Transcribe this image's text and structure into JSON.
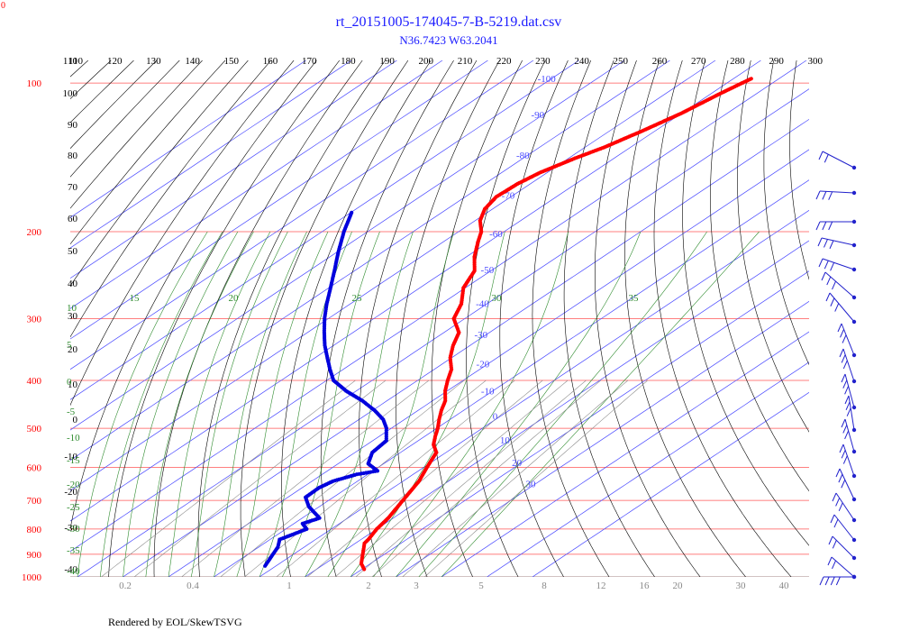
{
  "title": "rt_20151005-174045-7-B-5219.dat.csv",
  "subtitle": "N36.7423 W63.2041",
  "footer": "Rendered by EOL/SkewTSVG",
  "corner_label": "0",
  "colors": {
    "temperature": "#ff0000",
    "dewpoint": "#0000dd",
    "isobar": "#ff5555",
    "isotherm": "#4a4aff",
    "dry_adiabat": "#000000",
    "moist_adiabat": "#2e8b2e",
    "mixing_ratio": "#888888",
    "wind": "#2222cc"
  },
  "chart_data": {
    "type": "scatter",
    "title": "rt_20151005-174045-7-B-5219.dat.csv",
    "subtitle": "N36.7423 W63.2041",
    "pressure_ticks": [
      "100",
      "200",
      "300",
      "400",
      "500",
      "600",
      "700",
      "800",
      "900",
      "1000"
    ],
    "pressure_values": [
      100,
      200,
      300,
      400,
      500,
      600,
      700,
      800,
      900,
      1000
    ],
    "top_ticks": [
      "110",
      "120",
      "130",
      "140",
      "150",
      "160",
      "170",
      "180",
      "190",
      "200",
      "210",
      "220",
      "230",
      "240",
      "250",
      "260",
      "270",
      "280",
      "290",
      "300"
    ],
    "left_ticks": [
      "110",
      "100",
      "90",
      "80",
      "70",
      "60",
      "50",
      "40",
      "30",
      "20",
      "10",
      "0",
      "-10",
      "-20",
      "-30",
      "-40"
    ],
    "isotherm_labels": [
      "-110",
      "-100",
      "-90",
      "-80",
      "-70",
      "-60",
      "-50",
      "-40",
      "-30",
      "-20",
      "-10",
      "0",
      "10",
      "20",
      "30"
    ],
    "moist_top_labels": [
      "15",
      "20",
      "25",
      "30",
      "35"
    ],
    "moist_left_labels": [
      "10",
      "5",
      "0",
      "-5",
      "-10",
      "-15",
      "-20",
      "-25",
      "-30",
      "-35",
      "-40"
    ],
    "mixing_ratio_labels": [
      "0.2",
      "0.4",
      "1",
      "2",
      "3",
      "5",
      "8",
      "12",
      "16",
      "20",
      "30",
      "40"
    ],
    "temperature_series": {
      "name": "Temperature",
      "points": [
        [
          98,
          -56.1
        ],
        [
          105,
          -58.0
        ],
        [
          115,
          -60.0
        ],
        [
          125,
          -62.8
        ],
        [
          135,
          -65.8
        ],
        [
          142,
          -68.6
        ],
        [
          152,
          -71.6
        ],
        [
          160,
          -72.8
        ],
        [
          170,
          -73.2
        ],
        [
          180,
          -71.7
        ],
        [
          190,
          -68.9
        ],
        [
          200,
          -65.0
        ],
        [
          210,
          -62.3
        ],
        [
          225,
          -58.2
        ],
        [
          240,
          -53.6
        ],
        [
          260,
          -50.4
        ],
        [
          280,
          -45.6
        ],
        [
          300,
          -42.4
        ],
        [
          320,
          -36.7
        ],
        [
          340,
          -33.7
        ],
        [
          360,
          -30.3
        ],
        [
          380,
          -26.2
        ],
        [
          400,
          -23.4
        ],
        [
          420,
          -20.5
        ],
        [
          440,
          -17.2
        ],
        [
          460,
          -14.9
        ],
        [
          480,
          -12.4
        ],
        [
          500,
          -9.8
        ],
        [
          520,
          -7.6
        ],
        [
          540,
          -5.3
        ],
        [
          560,
          -2.1
        ],
        [
          580,
          -0.7
        ],
        [
          600,
          0.7
        ],
        [
          640,
          3.5
        ],
        [
          680,
          5.4
        ],
        [
          720,
          7.2
        ],
        [
          760,
          8.9
        ],
        [
          800,
          10.0
        ],
        [
          840,
          11.6
        ],
        [
          855,
          12.0
        ],
        [
          940,
          18.0
        ],
        [
          965,
          20.5
        ]
      ]
    },
    "dewpoint_series": {
      "name": "Dew point",
      "points": [
        [
          183,
          -99.8
        ],
        [
          200,
          -95.2
        ],
        [
          220,
          -89.7
        ],
        [
          240,
          -84.4
        ],
        [
          260,
          -79.6
        ],
        [
          280,
          -75.2
        ],
        [
          300,
          -70.8
        ],
        [
          320,
          -66.3
        ],
        [
          340,
          -61.9
        ],
        [
          360,
          -57.3
        ],
        [
          380,
          -52.9
        ],
        [
          400,
          -48.5
        ],
        [
          420,
          -42.3
        ],
        [
          440,
          -35.4
        ],
        [
          460,
          -29.6
        ],
        [
          480,
          -24.7
        ],
        [
          500,
          -21.1
        ],
        [
          530,
          -17.0
        ],
        [
          560,
          -16.2
        ],
        [
          590,
          -13.4
        ],
        [
          610,
          -9.0
        ],
        [
          620,
          -12.4
        ],
        [
          640,
          -15.4
        ],
        [
          660,
          -16.3
        ],
        [
          690,
          -16.1
        ],
        [
          720,
          -12.4
        ],
        [
          760,
          -6.2
        ],
        [
          780,
          -8.1
        ],
        [
          800,
          -5.4
        ],
        [
          840,
          -7.9
        ],
        [
          870,
          -5.8
        ],
        [
          950,
          -2.4
        ]
      ]
    },
    "wind_levels": [
      "100",
      "125",
      "150",
      "175",
      "200",
      "225",
      "250",
      "300",
      "350",
      "400",
      "450",
      "500",
      "550",
      "600",
      "650",
      "700",
      "800",
      "850",
      "1000"
    ]
  }
}
